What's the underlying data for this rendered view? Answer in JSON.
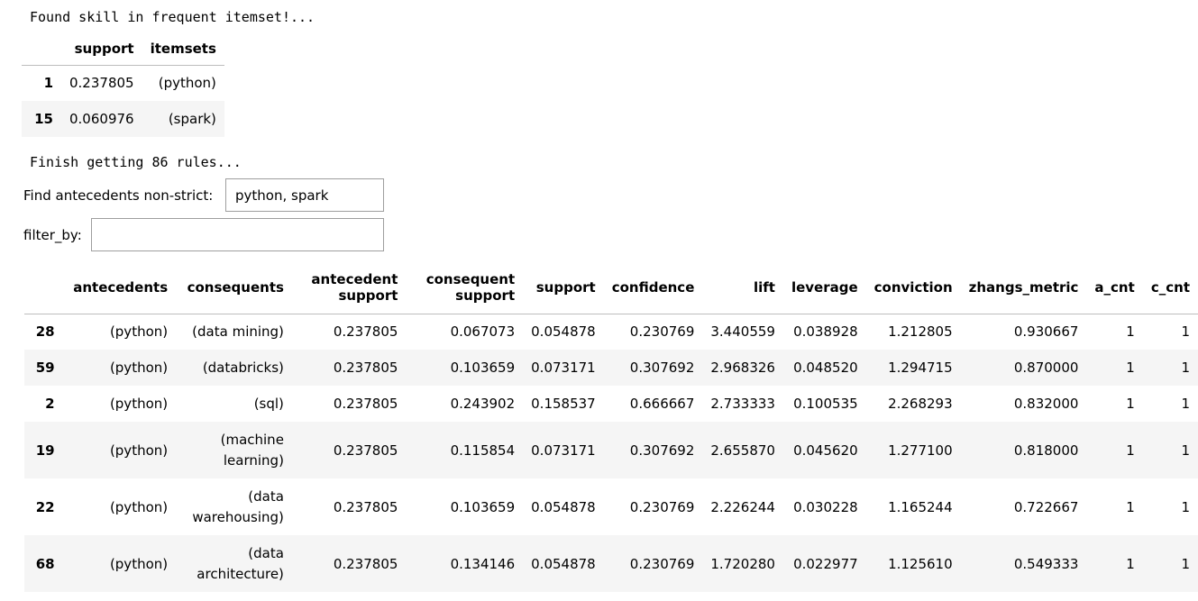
{
  "messages": {
    "found": "Found skill in frequent itemset!...",
    "finish": "Finish getting 86 rules..."
  },
  "freq_table": {
    "columns": [
      "",
      "support",
      "itemsets"
    ],
    "rows": [
      {
        "index": "1",
        "support": "0.237805",
        "itemsets": "(python)"
      },
      {
        "index": "15",
        "support": "0.060976",
        "itemsets": "(spark)"
      }
    ]
  },
  "widgets": {
    "antecedents_label": "Find antecedents non-strict:",
    "antecedents_value": "python, spark",
    "filter_label": "filter_by:",
    "filter_value": ""
  },
  "rules_table": {
    "columns": [
      "",
      "antecedents",
      "consequents",
      "antecedent support",
      "consequent support",
      "support",
      "confidence",
      "lift",
      "leverage",
      "conviction",
      "zhangs_metric",
      "a_cnt",
      "c_cnt"
    ],
    "rows": [
      {
        "index": "28",
        "antecedents": "(python)",
        "consequents": "(data mining)",
        "antecedent_support": "0.237805",
        "consequent_support": "0.067073",
        "support": "0.054878",
        "confidence": "0.230769",
        "lift": "3.440559",
        "leverage": "0.038928",
        "conviction": "1.212805",
        "zhangs_metric": "0.930667",
        "a_cnt": "1",
        "c_cnt": "1"
      },
      {
        "index": "59",
        "antecedents": "(python)",
        "consequents": "(databricks)",
        "antecedent_support": "0.237805",
        "consequent_support": "0.103659",
        "support": "0.073171",
        "confidence": "0.307692",
        "lift": "2.968326",
        "leverage": "0.048520",
        "conviction": "1.294715",
        "zhangs_metric": "0.870000",
        "a_cnt": "1",
        "c_cnt": "1"
      },
      {
        "index": "2",
        "antecedents": "(python)",
        "consequents": "(sql)",
        "antecedent_support": "0.237805",
        "consequent_support": "0.243902",
        "support": "0.158537",
        "confidence": "0.666667",
        "lift": "2.733333",
        "leverage": "0.100535",
        "conviction": "2.268293",
        "zhangs_metric": "0.832000",
        "a_cnt": "1",
        "c_cnt": "1"
      },
      {
        "index": "19",
        "antecedents": "(python)",
        "consequents": "(machine learning)",
        "antecedent_support": "0.237805",
        "consequent_support": "0.115854",
        "support": "0.073171",
        "confidence": "0.307692",
        "lift": "2.655870",
        "leverage": "0.045620",
        "conviction": "1.277100",
        "zhangs_metric": "0.818000",
        "a_cnt": "1",
        "c_cnt": "1"
      },
      {
        "index": "22",
        "antecedents": "(python)",
        "consequents": "(data warehousing)",
        "antecedent_support": "0.237805",
        "consequent_support": "0.103659",
        "support": "0.054878",
        "confidence": "0.230769",
        "lift": "2.226244",
        "leverage": "0.030228",
        "conviction": "1.165244",
        "zhangs_metric": "0.722667",
        "a_cnt": "1",
        "c_cnt": "1"
      },
      {
        "index": "68",
        "antecedents": "(python)",
        "consequents": "(data architecture)",
        "antecedent_support": "0.237805",
        "consequent_support": "0.134146",
        "support": "0.054878",
        "confidence": "0.230769",
        "lift": "1.720280",
        "leverage": "0.022977",
        "conviction": "1.125610",
        "zhangs_metric": "0.549333",
        "a_cnt": "1",
        "c_cnt": "1"
      }
    ]
  }
}
